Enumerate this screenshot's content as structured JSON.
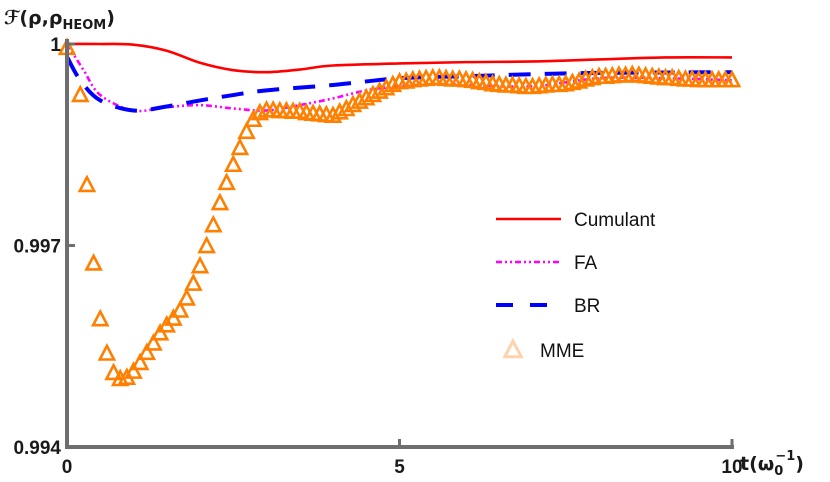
{
  "chart_data": {
    "type": "line",
    "ylabel": {
      "main": "ℱ(ρ,ρ",
      "sub": "HEOM",
      "close": ")"
    },
    "xlabel": {
      "main": "t(ω",
      "sub": "0",
      "sup": "−1",
      "close": ")"
    },
    "xlim": [
      0,
      10
    ],
    "ylim": [
      0.994,
      1.0
    ],
    "xticks": [
      {
        "value": 0,
        "label": "0"
      },
      {
        "value": 5,
        "label": "5"
      },
      {
        "value": 10,
        "label": "10"
      }
    ],
    "yticks": [
      {
        "value": 1.0,
        "label": "1"
      },
      {
        "value": 0.997,
        "label": "0.997"
      },
      {
        "value": 0.994,
        "label": "0.994"
      }
    ],
    "grid": false,
    "legend_placement": "center-right",
    "series": [
      {
        "name": "Cumulant",
        "style": "solid",
        "color": "#ff0000",
        "x": [
          0,
          0.5,
          1,
          1.5,
          2,
          2.5,
          3,
          3.5,
          4,
          5,
          6,
          7,
          8,
          9,
          10
        ],
        "y": [
          1.0,
          1.0,
          0.99999,
          0.9999,
          0.99972,
          0.99961,
          0.99958,
          0.99962,
          0.99968,
          0.99971,
          0.99973,
          0.99974,
          0.99977,
          0.9998,
          0.9998
        ]
      },
      {
        "name": "FA",
        "style": "dashdot",
        "color": "#ff00ff",
        "x": [
          0,
          0.25,
          0.5,
          1,
          1.5,
          2,
          2.5,
          3,
          3.5,
          4,
          4.5,
          5,
          5.5,
          6,
          7,
          8,
          9,
          10
        ],
        "y": [
          1.0,
          0.99961,
          0.99924,
          0.99901,
          0.99906,
          0.99909,
          0.99904,
          0.99901,
          0.99909,
          0.99919,
          0.99931,
          0.99937,
          0.9994,
          0.99939,
          0.99937,
          0.99949,
          0.99949,
          0.99946
        ]
      },
      {
        "name": "BR",
        "style": "dashed",
        "color": "#0000ff",
        "x": [
          0,
          0.2,
          0.5,
          1,
          1.5,
          2,
          2.5,
          3,
          4,
          5,
          6,
          7,
          8,
          10
        ],
        "y": [
          0.99981,
          0.99946,
          0.99916,
          0.99901,
          0.99907,
          0.99916,
          0.99924,
          0.99931,
          0.99939,
          0.99949,
          0.99952,
          0.99955,
          0.99957,
          0.99958
        ]
      },
      {
        "name": "MME",
        "style": "markers-triangle",
        "color": "#ff8000",
        "legend_color": "#fdd3ad",
        "x": [
          0,
          0.2,
          0.3,
          0.4,
          0.5,
          0.6,
          0.7,
          0.8,
          0.9,
          1.0,
          1.1,
          1.2,
          1.3,
          1.4,
          1.5,
          1.6,
          1.7,
          1.8,
          1.9,
          2.0,
          2.1,
          2.2,
          2.3,
          2.4,
          2.5,
          2.6,
          2.7,
          2.8,
          2.9,
          3.0,
          3.1,
          3.2,
          3.3,
          3.4,
          3.5,
          3.6,
          3.7,
          3.8,
          3.9,
          4.0,
          4.1,
          4.2,
          4.3,
          4.4,
          4.5,
          4.6,
          4.7,
          4.8,
          4.9,
          5.0,
          5.1,
          5.2,
          5.3,
          5.4,
          5.5,
          5.6,
          5.7,
          5.8,
          5.9,
          6.0,
          6.1,
          6.2,
          6.3,
          6.4,
          6.5,
          6.6,
          6.7,
          6.8,
          6.9,
          7.0,
          7.1,
          7.2,
          7.3,
          7.4,
          7.5,
          7.6,
          7.7,
          7.8,
          7.9,
          8.0,
          8.1,
          8.2,
          8.3,
          8.4,
          8.5,
          8.6,
          8.7,
          8.8,
          8.9,
          9.0,
          9.1,
          9.2,
          9.3,
          9.4,
          9.5,
          9.6,
          9.7,
          9.8,
          9.9,
          10.0
        ],
        "y": [
          0.99994,
          0.99924,
          0.9979,
          0.99673,
          0.9959,
          0.99539,
          0.9951,
          0.99501,
          0.99503,
          0.99512,
          0.99525,
          0.9954,
          0.99554,
          0.99569,
          0.99581,
          0.99591,
          0.99603,
          0.99621,
          0.99643,
          0.99669,
          0.99699,
          0.9973,
          0.99763,
          0.99793,
          0.9982,
          0.99845,
          0.99869,
          0.99887,
          0.99897,
          0.99901,
          0.99901,
          0.999,
          0.999,
          0.99899,
          0.99899,
          0.99897,
          0.99896,
          0.99895,
          0.99894,
          0.99893,
          0.99898,
          0.99903,
          0.99909,
          0.99914,
          0.99919,
          0.99924,
          0.99929,
          0.99934,
          0.99939,
          0.99943,
          0.99944,
          0.99946,
          0.99947,
          0.99948,
          0.99949,
          0.99949,
          0.99948,
          0.99947,
          0.99947,
          0.99946,
          0.99945,
          0.99943,
          0.99942,
          0.9994,
          0.99939,
          0.99938,
          0.99938,
          0.99937,
          0.99936,
          0.99936,
          0.99937,
          0.99938,
          0.99939,
          0.99939,
          0.9994,
          0.99942,
          0.99944,
          0.99947,
          0.99949,
          0.99951,
          0.99951,
          0.99952,
          0.99953,
          0.99953,
          0.99954,
          0.99953,
          0.99952,
          0.99951,
          0.9995,
          0.99949,
          0.99949,
          0.99948,
          0.99947,
          0.99947,
          0.99946,
          0.99946,
          0.99946,
          0.99946,
          0.99946,
          0.99946
        ]
      }
    ]
  }
}
